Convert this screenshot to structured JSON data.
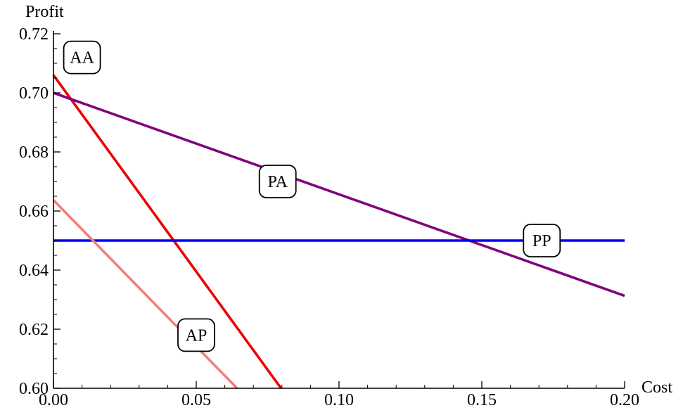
{
  "chart_data": {
    "type": "line",
    "xlabel": "Cost",
    "ylabel": "Profit",
    "xlim": [
      0,
      0.2
    ],
    "ylim": [
      0.6,
      0.72
    ],
    "x_ticks": [
      "0.00",
      "0.05",
      "0.10",
      "0.15",
      "0.20"
    ],
    "y_ticks": [
      "0.60",
      "0.62",
      "0.64",
      "0.66",
      "0.68",
      "0.70",
      "0.72"
    ],
    "grid": false,
    "series": [
      {
        "name": "AA",
        "color": "#ee0000",
        "x": [
          0,
          0.0797
        ],
        "y": [
          0.706,
          0.6
        ],
        "label_at": [
          0.01,
          0.712
        ]
      },
      {
        "name": "PA",
        "color": "#800080",
        "x": [
          0,
          0.2
        ],
        "y": [
          0.7,
          0.6313
        ],
        "label_at": [
          0.0785,
          0.67
        ]
      },
      {
        "name": "PP",
        "color": "#0000ee",
        "x": [
          0,
          0.2
        ],
        "y": [
          0.65,
          0.65
        ],
        "label_at": [
          0.171,
          0.65
        ]
      },
      {
        "name": "AP",
        "color": "#f08080",
        "x": [
          0,
          0.0643
        ],
        "y": [
          0.6637,
          0.6
        ],
        "label_at": [
          0.05,
          0.618
        ],
        "label_gap": true
      }
    ]
  }
}
